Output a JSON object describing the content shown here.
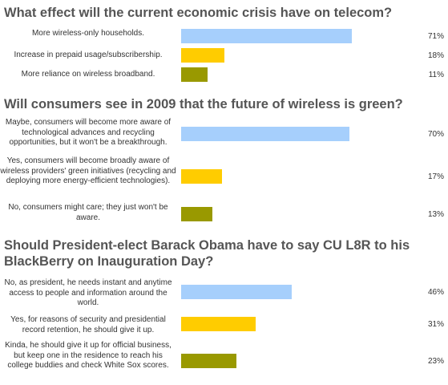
{
  "colors": {
    "blue": "#a6cffc",
    "yellow": "#ffcc00",
    "olive": "#999900"
  },
  "chart_data": [
    {
      "type": "bar",
      "title": "What effect will the current economic crisis have on telecom?",
      "categories": [
        "More wireless-only households.",
        "Increase in prepaid usage/subscribership.",
        "More reliance on wireless broadband."
      ],
      "values": [
        71,
        18,
        11
      ],
      "labels": [
        "71%",
        "18%",
        "11%"
      ],
      "colors": [
        "blue",
        "yellow",
        "olive"
      ],
      "xlim": [
        0,
        100
      ]
    },
    {
      "type": "bar",
      "title": "Will consumers see in 2009 that the future of wireless is green?",
      "categories": [
        "Maybe, consumers will become more aware of technological advances and recycling opportunities, but it won't be a breakthrough.",
        "Yes, consumers will become broadly aware of wireless providers' green initiatives (recycling and deploying more energy-efficient technologies).",
        "No, consumers might care; they just won't be aware."
      ],
      "values": [
        70,
        17,
        13
      ],
      "labels": [
        "70%",
        "17%",
        "13%"
      ],
      "colors": [
        "blue",
        "yellow",
        "olive"
      ],
      "xlim": [
        0,
        100
      ]
    },
    {
      "type": "bar",
      "title": "Should President-elect Barack Obama have to say CU L8R to his BlackBerry on Inauguration Day?",
      "categories": [
        "No, as president, he needs instant and anytime access to people and information around the world.",
        "Yes, for reasons of security and presidential record retention, he should give it up.",
        "Kinda, he should give it up for official business, but keep one in the residence to reach his college buddies and check White Sox scores."
      ],
      "values": [
        46,
        31,
        23
      ],
      "labels": [
        "46%",
        "31%",
        "23%"
      ],
      "colors": [
        "blue",
        "yellow",
        "olive"
      ],
      "xlim": [
        0,
        100
      ]
    }
  ]
}
